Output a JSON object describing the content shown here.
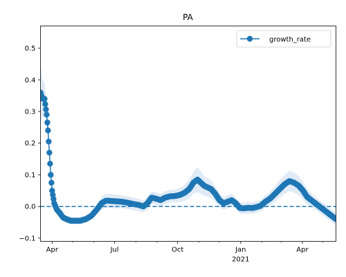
{
  "chart_data": {
    "type": "line",
    "title": "PA",
    "xlabel": "",
    "ylabel": "",
    "x_range": [
      "2020-03-15",
      "2021-05-20"
    ],
    "ylim": [
      -0.11,
      0.57
    ],
    "y_ticks": [
      -0.1,
      0.0,
      0.1,
      0.2,
      0.3,
      0.4,
      0.5
    ],
    "y_tick_labels": [
      "−0.1",
      "0.0",
      "0.1",
      "0.2",
      "0.3",
      "0.4",
      "0.5"
    ],
    "x_major_ticks": [
      {
        "date": "2020-04-01",
        "label": "Apr",
        "sublabel": ""
      },
      {
        "date": "2020-07-01",
        "label": "Jul",
        "sublabel": ""
      },
      {
        "date": "2020-10-01",
        "label": "Oct",
        "sublabel": ""
      },
      {
        "date": "2021-01-01",
        "label": "Jan",
        "sublabel": "2021"
      },
      {
        "date": "2021-04-01",
        "label": "Apr",
        "sublabel": ""
      }
    ],
    "x_minor_ticks": [
      "2020-05-01",
      "2020-06-01",
      "2020-08-01",
      "2020-09-01",
      "2020-11-01",
      "2020-12-01",
      "2021-02-01",
      "2021-03-01",
      "2021-05-01"
    ],
    "reference_line": {
      "y": 0.0,
      "style": "dashed"
    },
    "legend": {
      "position": "upper right",
      "entries": [
        "growth_rate"
      ]
    },
    "series": [
      {
        "name": "growth_rate",
        "color": "#1f77b4",
        "band_color": "#c6dbef",
        "x": [
          "2020-03-15",
          "2020-03-18",
          "2020-03-21",
          "2020-03-24",
          "2020-03-26",
          "2020-03-28",
          "2020-03-30",
          "2020-04-01",
          "2020-04-04",
          "2020-04-08",
          "2020-04-12",
          "2020-04-17",
          "2020-04-22",
          "2020-04-28",
          "2020-05-05",
          "2020-05-12",
          "2020-05-20",
          "2020-05-28",
          "2020-06-05",
          "2020-06-12",
          "2020-06-18",
          "2020-06-23",
          "2020-06-28",
          "2020-07-05",
          "2020-07-12",
          "2020-07-20",
          "2020-07-28",
          "2020-08-05",
          "2020-08-12",
          "2020-08-18",
          "2020-08-24",
          "2020-08-30",
          "2020-09-06",
          "2020-09-13",
          "2020-09-20",
          "2020-09-27",
          "2020-10-04",
          "2020-10-11",
          "2020-10-18",
          "2020-10-24",
          "2020-10-30",
          "2020-11-04",
          "2020-11-09",
          "2020-11-14",
          "2020-11-19",
          "2020-11-25",
          "2020-12-01",
          "2020-12-07",
          "2020-12-13",
          "2020-12-19",
          "2020-12-25",
          "2020-12-31",
          "2021-01-06",
          "2021-01-12",
          "2021-01-18",
          "2021-01-24",
          "2021-01-30",
          "2021-02-06",
          "2021-02-13",
          "2021-02-20",
          "2021-02-27",
          "2021-03-06",
          "2021-03-13",
          "2021-03-20",
          "2021-03-27",
          "2021-04-02",
          "2021-04-08",
          "2021-04-14",
          "2021-04-20",
          "2021-04-26",
          "2021-05-02",
          "2021-05-08",
          "2021-05-14",
          "2021-05-20"
        ],
        "values": [
          0.36,
          0.34,
          0.34,
          0.29,
          0.24,
          0.17,
          0.1,
          0.05,
          0.01,
          -0.01,
          -0.02,
          -0.035,
          -0.04,
          -0.045,
          -0.045,
          -0.045,
          -0.04,
          -0.03,
          -0.01,
          0.01,
          0.018,
          0.018,
          0.017,
          0.016,
          0.015,
          0.012,
          0.008,
          0.005,
          0.0,
          0.01,
          0.028,
          0.025,
          0.02,
          0.028,
          0.032,
          0.033,
          0.036,
          0.043,
          0.055,
          0.075,
          0.085,
          0.075,
          0.065,
          0.06,
          0.055,
          0.04,
          0.02,
          0.01,
          0.015,
          0.02,
          0.01,
          -0.005,
          -0.006,
          -0.004,
          -0.005,
          -0.002,
          0.002,
          0.015,
          0.025,
          0.04,
          0.055,
          0.07,
          0.08,
          0.075,
          0.065,
          0.05,
          0.03,
          0.02,
          0.01,
          0.0,
          -0.01,
          -0.02,
          -0.03,
          -0.04
        ],
        "band_half_width": [
          0.1,
          0.06,
          0.05,
          0.04,
          0.03,
          0.025,
          0.02,
          0.015,
          0.012,
          0.012,
          0.012,
          0.012,
          0.012,
          0.012,
          0.012,
          0.012,
          0.012,
          0.012,
          0.015,
          0.02,
          0.022,
          0.022,
          0.022,
          0.022,
          0.02,
          0.02,
          0.02,
          0.02,
          0.018,
          0.02,
          0.02,
          0.02,
          0.02,
          0.02,
          0.02,
          0.02,
          0.022,
          0.025,
          0.03,
          0.035,
          0.04,
          0.035,
          0.03,
          0.03,
          0.028,
          0.025,
          0.022,
          0.02,
          0.02,
          0.02,
          0.018,
          0.018,
          0.018,
          0.018,
          0.018,
          0.018,
          0.018,
          0.02,
          0.022,
          0.025,
          0.028,
          0.03,
          0.032,
          0.032,
          0.03,
          0.028,
          0.025,
          0.022,
          0.02,
          0.02,
          0.02,
          0.02,
          0.02,
          0.02
        ]
      }
    ]
  }
}
